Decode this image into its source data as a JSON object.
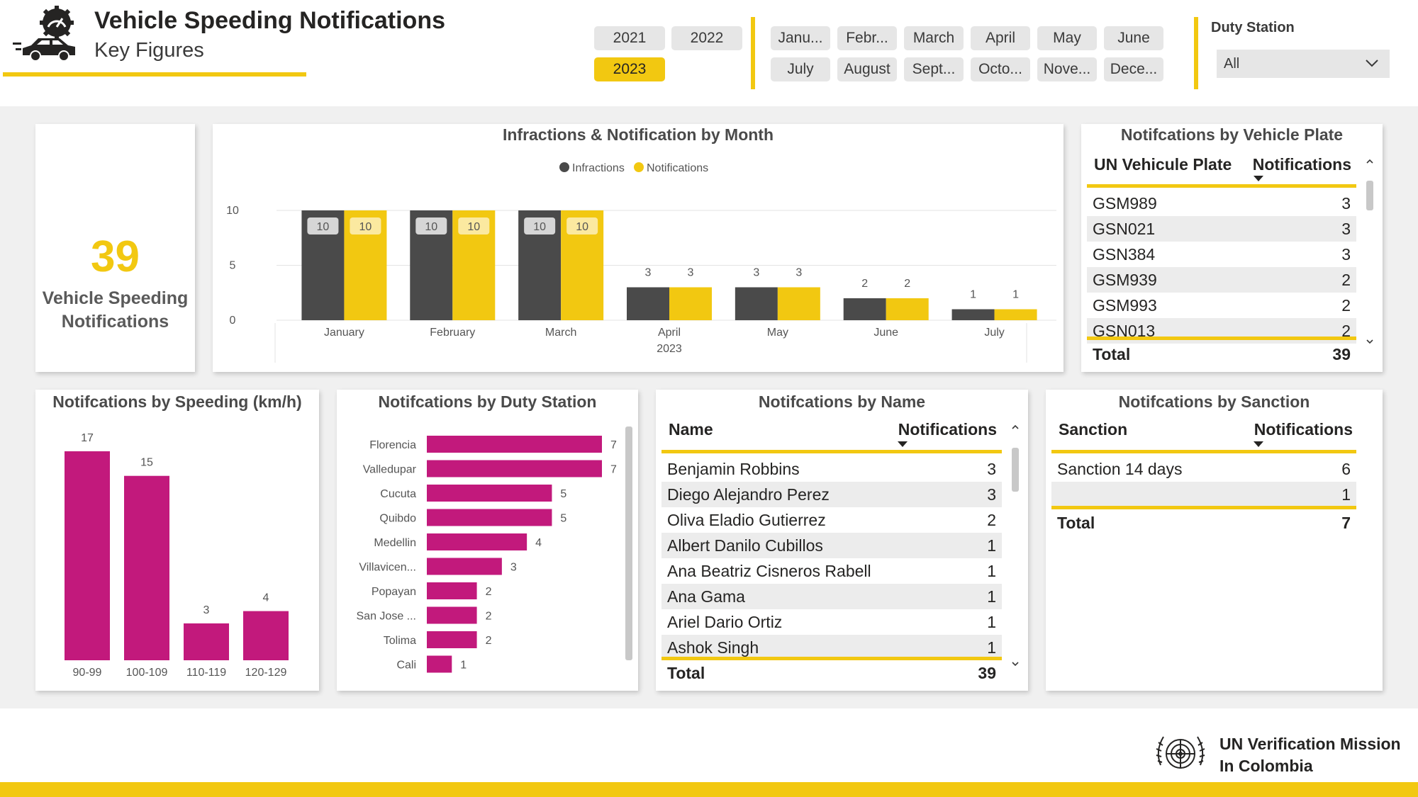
{
  "header": {
    "title": "Vehicle Speeding Notifications",
    "subtitle": "Key Figures"
  },
  "colors": {
    "accent": "#F2C811",
    "infractions": "#4a4a4a",
    "notifications": "#F2C811",
    "bars": "#C2197C"
  },
  "icons": [
    "speedometer-icon",
    "car-icon",
    "chevron-down-icon",
    "un-emblem-icon"
  ],
  "year_slicer": {
    "options": [
      "2021",
      "2022",
      "2023"
    ],
    "selected": "2023"
  },
  "month_slicer": {
    "options": [
      "Janu...",
      "Febr...",
      "March",
      "April",
      "May",
      "June",
      "July",
      "August",
      "Sept...",
      "Octo...",
      "Nove...",
      "Dece..."
    ]
  },
  "duty_station_filter": {
    "label": "Duty Station",
    "value": "All"
  },
  "kpi": {
    "value": "39",
    "label_line1": "Vehicle Speeding",
    "label_line2": "Notifications"
  },
  "chart_data": [
    {
      "type": "bar",
      "title": "Infractions & Notification by Month",
      "categories": [
        "January",
        "February",
        "March",
        "April",
        "May",
        "June",
        "July"
      ],
      "x_group_label": "2023",
      "series": [
        {
          "name": "Infractions",
          "values": [
            10,
            10,
            10,
            3,
            3,
            2,
            1
          ]
        },
        {
          "name": "Notifications",
          "values": [
            10,
            10,
            10,
            3,
            3,
            2,
            1
          ]
        }
      ],
      "yticks": [
        "0",
        "5",
        "10"
      ],
      "ylim": [
        0,
        10
      ],
      "legend": "top-center"
    },
    {
      "type": "bar",
      "title": "Notifcations by Speeding (km/h)",
      "categories": [
        "90-99",
        "100-109",
        "110-119",
        "120-129"
      ],
      "values": [
        17,
        15,
        3,
        4
      ],
      "ylim": [
        0,
        17
      ]
    },
    {
      "type": "bar",
      "orientation": "horizontal",
      "title": "Notifcations by Duty Station",
      "categories": [
        "Florencia",
        "Valledupar",
        "Cucuta",
        "Quibdo",
        "Medellin",
        "Villavicen...",
        "Popayan",
        "San Jose ...",
        "Tolima",
        "Cali"
      ],
      "values": [
        7,
        7,
        5,
        5,
        4,
        3,
        2,
        2,
        2,
        1
      ],
      "xlim": [
        0,
        7
      ]
    }
  ],
  "plate_table": {
    "title": "Notifcations by Vehicle Plate",
    "col1": "UN Vehicule Plate",
    "col2": "Notifications",
    "rows": [
      {
        "name": "GSM989",
        "value": "3"
      },
      {
        "name": "GSN021",
        "value": "3"
      },
      {
        "name": "GSN384",
        "value": "3"
      },
      {
        "name": "GSM939",
        "value": "2"
      },
      {
        "name": "GSM993",
        "value": "2"
      },
      {
        "name": "GSN013",
        "value": "2"
      }
    ],
    "total_label": "Total",
    "total_value": "39"
  },
  "name_table": {
    "title": "Notifcations by Name",
    "col1": "Name",
    "col2": "Notifications",
    "rows": [
      {
        "name": "Benjamin Robbins",
        "value": "3"
      },
      {
        "name": "Diego Alejandro Perez",
        "value": "3"
      },
      {
        "name": "Oliva Eladio Gutierrez",
        "value": "2"
      },
      {
        "name": "Albert Danilo Cubillos",
        "value": "1"
      },
      {
        "name": "Ana Beatriz Cisneros Rabell",
        "value": "1"
      },
      {
        "name": "Ana Gama",
        "value": "1"
      },
      {
        "name": "Ariel Dario Ortiz",
        "value": "1"
      },
      {
        "name": "Ashok Singh",
        "value": "1"
      }
    ],
    "total_label": "Total",
    "total_value": "39"
  },
  "sanction_table": {
    "title": "Notifcations by Sanction",
    "col1": "Sanction",
    "col2": "Notifications",
    "rows": [
      {
        "name": "Sanction 14 days",
        "value": "6"
      },
      {
        "name": "",
        "value": "1"
      }
    ],
    "total_label": "Total",
    "total_value": "7"
  },
  "footer": {
    "org_line1": "UN Verification Mission",
    "org_line2": "In Colombia"
  }
}
